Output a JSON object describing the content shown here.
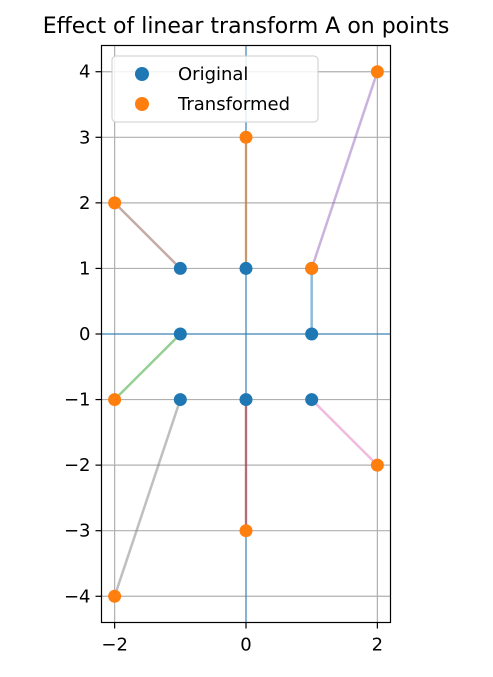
{
  "chart_data": {
    "type": "scatter",
    "title": "Effect of linear transform A on points",
    "xlabel": "",
    "ylabel": "",
    "xlim": [
      -2.2,
      2.2
    ],
    "ylim": [
      -4.4,
      4.4
    ],
    "xticks": [
      -2,
      0,
      2
    ],
    "xtick_labels": [
      "−2",
      "0",
      "2"
    ],
    "yticks": [
      -4,
      -3,
      -2,
      -1,
      0,
      1,
      2,
      3,
      4
    ],
    "ytick_labels": [
      "−4",
      "−3",
      "−2",
      "−1",
      "0",
      "1",
      "2",
      "3",
      "4"
    ],
    "grid": true,
    "legend_position": "top-left",
    "series": [
      {
        "name": "Original",
        "color": "#1f77b4",
        "points": [
          [
            1,
            0
          ],
          [
            1,
            1
          ],
          [
            0,
            1
          ],
          [
            -1,
            1
          ],
          [
            -1,
            0
          ],
          [
            -1,
            -1
          ],
          [
            0,
            -1
          ],
          [
            1,
            -1
          ]
        ]
      },
      {
        "name": "Transformed",
        "color": "#ff7f0e",
        "points": [
          [
            1,
            1
          ],
          [
            2,
            4
          ],
          [
            0,
            3
          ],
          [
            -2,
            2
          ],
          [
            -2,
            -1
          ],
          [
            -2,
            -4
          ],
          [
            0,
            -3
          ],
          [
            2,
            -2
          ]
        ]
      }
    ],
    "segment_colors": [
      "#1f77b4",
      "#9467bd",
      "#ff7f0e",
      "#8c564b",
      "#2ca02c",
      "#7f7f7f",
      "#d62728",
      "#e377c2"
    ],
    "axis_line_color": "#1f77b4",
    "grid_color": "#b0b0b0"
  }
}
